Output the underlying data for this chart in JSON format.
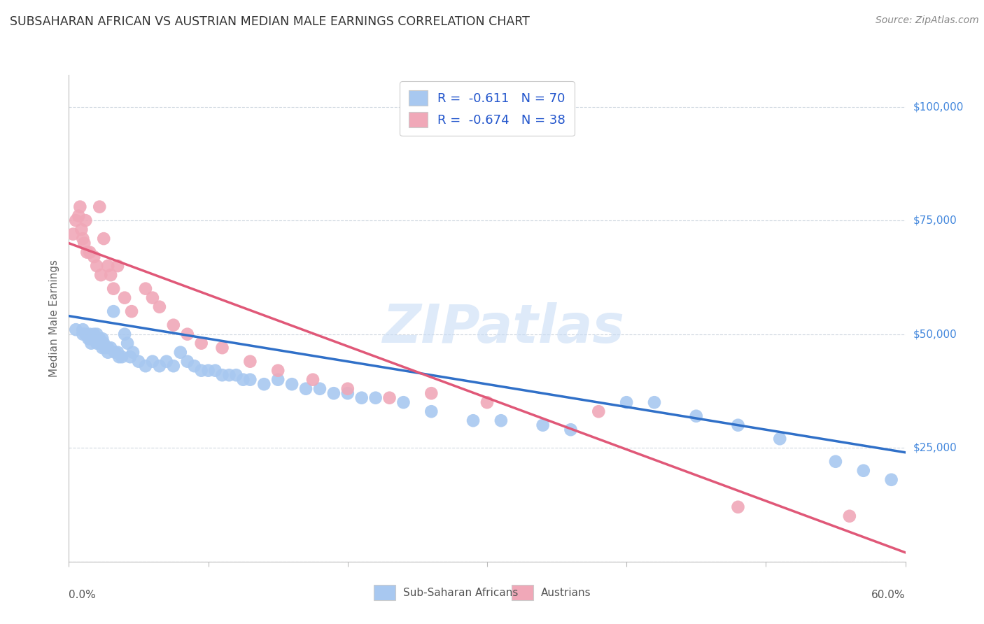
{
  "title": "SUBSAHARAN AFRICAN VS AUSTRIAN MEDIAN MALE EARNINGS CORRELATION CHART",
  "source": "Source: ZipAtlas.com",
  "ylabel": "Median Male Earnings",
  "legend_blue_label": "Sub-Saharan Africans",
  "legend_pink_label": "Austrians",
  "legend_blue_r": "-0.611",
  "legend_blue_n": "70",
  "legend_pink_r": "-0.674",
  "legend_pink_n": "38",
  "ytick_labels": [
    "",
    "$25,000",
    "$50,000",
    "$75,000",
    "$100,000"
  ],
  "yticks": [
    0,
    25000,
    50000,
    75000,
    100000
  ],
  "xlim": [
    0.0,
    0.6
  ],
  "ylim": [
    0,
    107000
  ],
  "blue_color": "#A8C8F0",
  "pink_color": "#F0A8B8",
  "blue_line_color": "#3070C8",
  "pink_line_color": "#E05878",
  "background_color": "#ffffff",
  "grid_color": "#D0D8E0",
  "watermark": "ZIPatlas",
  "blue_scatter_x": [
    0.005,
    0.01,
    0.01,
    0.012,
    0.014,
    0.015,
    0.015,
    0.016,
    0.018,
    0.018,
    0.02,
    0.02,
    0.022,
    0.022,
    0.024,
    0.024,
    0.025,
    0.026,
    0.028,
    0.028,
    0.03,
    0.032,
    0.033,
    0.035,
    0.036,
    0.038,
    0.04,
    0.042,
    0.044,
    0.046,
    0.05,
    0.055,
    0.06,
    0.065,
    0.07,
    0.075,
    0.08,
    0.085,
    0.09,
    0.095,
    0.1,
    0.105,
    0.11,
    0.115,
    0.12,
    0.125,
    0.13,
    0.14,
    0.15,
    0.16,
    0.17,
    0.18,
    0.19,
    0.2,
    0.21,
    0.22,
    0.24,
    0.26,
    0.29,
    0.31,
    0.34,
    0.36,
    0.4,
    0.42,
    0.45,
    0.48,
    0.51,
    0.55,
    0.57,
    0.59
  ],
  "blue_scatter_y": [
    51000,
    51000,
    50000,
    50000,
    49000,
    50000,
    49000,
    48000,
    50000,
    49000,
    50000,
    48000,
    49000,
    48000,
    49000,
    47000,
    48000,
    47000,
    47000,
    46000,
    47000,
    55000,
    46000,
    46000,
    45000,
    45000,
    50000,
    48000,
    45000,
    46000,
    44000,
    43000,
    44000,
    43000,
    44000,
    43000,
    46000,
    44000,
    43000,
    42000,
    42000,
    42000,
    41000,
    41000,
    41000,
    40000,
    40000,
    39000,
    40000,
    39000,
    38000,
    38000,
    37000,
    37000,
    36000,
    36000,
    35000,
    33000,
    31000,
    31000,
    30000,
    29000,
    35000,
    35000,
    32000,
    30000,
    27000,
    22000,
    20000,
    18000
  ],
  "pink_scatter_x": [
    0.003,
    0.005,
    0.007,
    0.008,
    0.009,
    0.01,
    0.011,
    0.012,
    0.013,
    0.015,
    0.018,
    0.02,
    0.022,
    0.023,
    0.025,
    0.028,
    0.03,
    0.032,
    0.035,
    0.04,
    0.045,
    0.055,
    0.06,
    0.065,
    0.075,
    0.085,
    0.095,
    0.11,
    0.13,
    0.15,
    0.175,
    0.2,
    0.23,
    0.26,
    0.3,
    0.38,
    0.48,
    0.56
  ],
  "pink_scatter_y": [
    72000,
    75000,
    76000,
    78000,
    73000,
    71000,
    70000,
    75000,
    68000,
    68000,
    67000,
    65000,
    78000,
    63000,
    71000,
    65000,
    63000,
    60000,
    65000,
    58000,
    55000,
    60000,
    58000,
    56000,
    52000,
    50000,
    48000,
    47000,
    44000,
    42000,
    40000,
    38000,
    36000,
    37000,
    35000,
    33000,
    12000,
    10000
  ],
  "blue_line_x": [
    0.0,
    0.6
  ],
  "blue_line_y": [
    54000,
    24000
  ],
  "pink_line_x": [
    0.0,
    0.6
  ],
  "pink_line_y": [
    70000,
    2000
  ]
}
